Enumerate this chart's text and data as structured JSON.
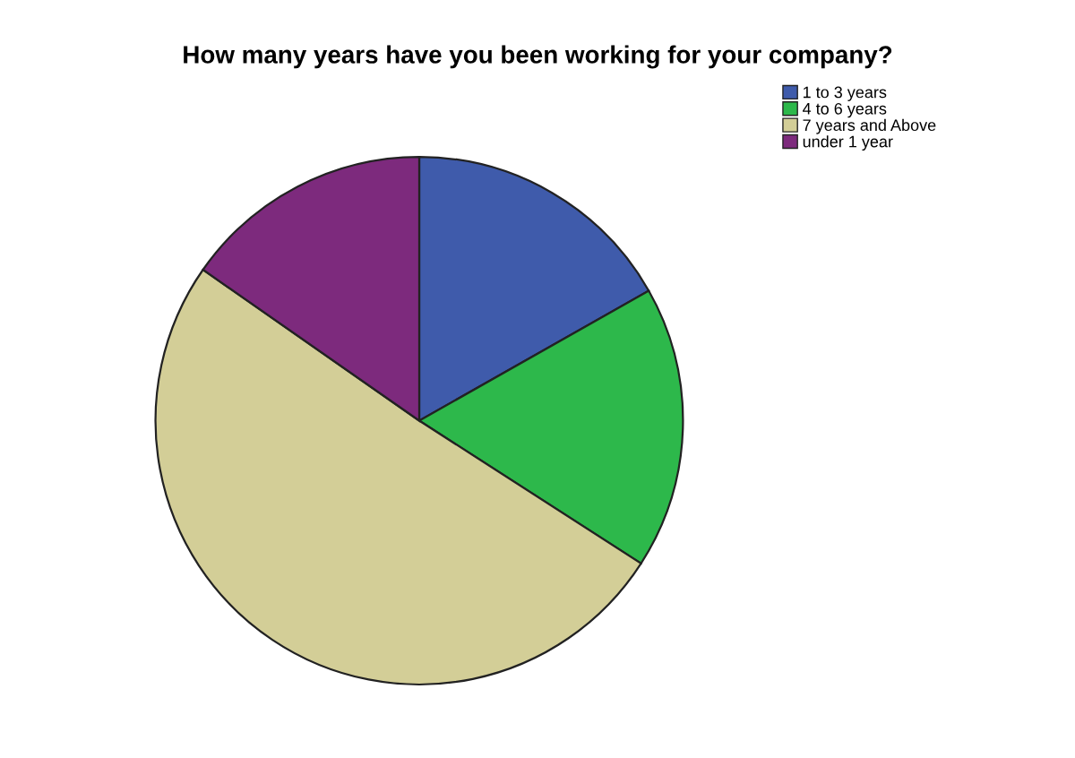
{
  "chart_data": {
    "type": "pie",
    "title": "How many years have you been working for your company?",
    "categories": [
      "1 to 3 years",
      "4 to 6 years",
      "7 years and Above",
      "under 1 year"
    ],
    "values": [
      16.8,
      17.3,
      50.6,
      15.3
    ],
    "colors": [
      "#3f5bab",
      "#2db84b",
      "#d3ce97",
      "#7d2a7d"
    ],
    "legend": "top right"
  }
}
